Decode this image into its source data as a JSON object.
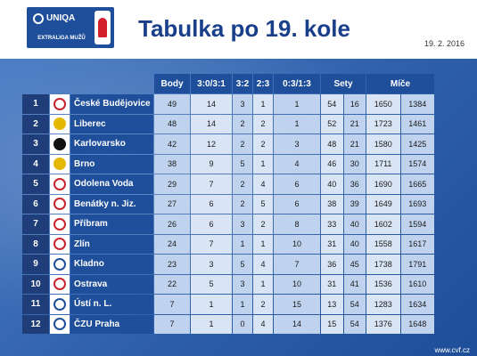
{
  "logo": {
    "brand": "UNIQA",
    "sub": "EXTRALIGA MUŽŮ"
  },
  "title": "Tabulka po 19. kole",
  "date": "19. 2. 2016",
  "footer": "www.cvf.cz",
  "columns": [
    "Body",
    "3:0/3:1",
    "3:2",
    "2:3",
    "0:3/1:3",
    "Sety",
    "Míče"
  ],
  "rows": [
    {
      "rank": "1",
      "team": "České Budějovice",
      "crest": "r",
      "body": "49",
      "w31": "14",
      "w32": "3",
      "l23": "1",
      "l13": "1",
      "sw": "54",
      "sl": "16",
      "bw": "1650",
      "bl": "1384"
    },
    {
      "rank": "2",
      "team": "Liberec",
      "crest": "y",
      "body": "48",
      "w31": "14",
      "w32": "2",
      "l23": "2",
      "l13": "1",
      "sw": "52",
      "sl": "21",
      "bw": "1723",
      "bl": "1461"
    },
    {
      "rank": "3",
      "team": "Karlovarsko",
      "crest": "k",
      "body": "42",
      "w31": "12",
      "w32": "2",
      "l23": "2",
      "l13": "3",
      "sw": "48",
      "sl": "21",
      "bw": "1580",
      "bl": "1425"
    },
    {
      "rank": "4",
      "team": "Brno",
      "crest": "y",
      "body": "38",
      "w31": "9",
      "w32": "5",
      "l23": "1",
      "l13": "4",
      "sw": "46",
      "sl": "30",
      "bw": "1711",
      "bl": "1574"
    },
    {
      "rank": "5",
      "team": "Odolena Voda",
      "crest": "r",
      "body": "29",
      "w31": "7",
      "w32": "2",
      "l23": "4",
      "l13": "6",
      "sw": "40",
      "sl": "36",
      "bw": "1690",
      "bl": "1665"
    },
    {
      "rank": "6",
      "team": "Benátky n. Jiz.",
      "crest": "r",
      "body": "27",
      "w31": "6",
      "w32": "2",
      "l23": "5",
      "l13": "6",
      "sw": "38",
      "sl": "39",
      "bw": "1649",
      "bl": "1693"
    },
    {
      "rank": "7",
      "team": "Příbram",
      "crest": "r",
      "body": "26",
      "w31": "6",
      "w32": "3",
      "l23": "2",
      "l13": "8",
      "sw": "33",
      "sl": "40",
      "bw": "1602",
      "bl": "1594"
    },
    {
      "rank": "8",
      "team": "Zlín",
      "crest": "r",
      "body": "24",
      "w31": "7",
      "w32": "1",
      "l23": "1",
      "l13": "10",
      "sw": "31",
      "sl": "40",
      "bw": "1558",
      "bl": "1617"
    },
    {
      "rank": "9",
      "team": "Kladno",
      "crest": "b",
      "body": "23",
      "w31": "3",
      "w32": "5",
      "l23": "4",
      "l13": "7",
      "sw": "36",
      "sl": "45",
      "bw": "1738",
      "bl": "1791"
    },
    {
      "rank": "10",
      "team": "Ostrava",
      "crest": "r",
      "body": "22",
      "w31": "5",
      "w32": "3",
      "l23": "1",
      "l13": "10",
      "sw": "31",
      "sl": "41",
      "bw": "1536",
      "bl": "1610"
    },
    {
      "rank": "11",
      "team": "Ústí n. L.",
      "crest": "b",
      "body": "7",
      "w31": "1",
      "w32": "1",
      "l23": "2",
      "l13": "15",
      "sw": "13",
      "sl": "54",
      "bw": "1283",
      "bl": "1634"
    },
    {
      "rank": "12",
      "team": "ČZU Praha",
      "crest": "b",
      "body": "7",
      "w31": "1",
      "w32": "0",
      "l23": "4",
      "l13": "14",
      "sw": "15",
      "sl": "54",
      "bw": "1376",
      "bl": "1648"
    }
  ]
}
